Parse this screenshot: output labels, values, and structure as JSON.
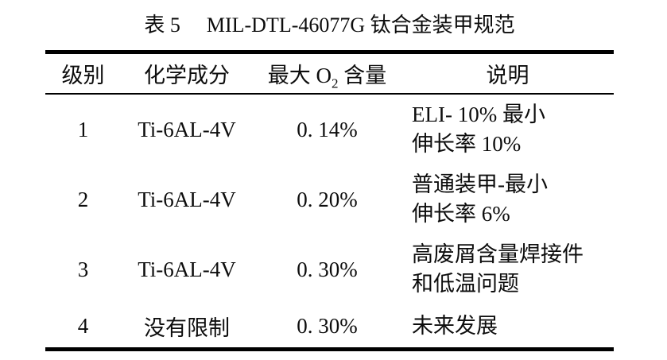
{
  "page": {
    "background_color": "#ffffff",
    "text_color": "#0d0d0d",
    "rule_color": "#000000"
  },
  "caption": {
    "label": "表 5",
    "text": "MIL-DTL-46077G 钛合金装甲规范"
  },
  "table": {
    "headers": {
      "grade": "级别",
      "composition": "化学成分",
      "max_o2_prefix": "最大 O",
      "max_o2_sub": "2",
      "max_o2_suffix": " 含量",
      "description": "说明"
    },
    "rows": [
      {
        "grade": "1",
        "composition": "Ti-6AL-4V",
        "max_o2": "0. 14%",
        "description": [
          "ELI- 10% 最小",
          "伸长率 10%"
        ]
      },
      {
        "grade": "2",
        "composition": "Ti-6AL-4V",
        "max_o2": "0. 20%",
        "description": [
          "普通装甲-最小",
          "伸长率 6%"
        ]
      },
      {
        "grade": "3",
        "composition": "Ti-6AL-4V",
        "max_o2": "0. 30%",
        "description": [
          "高废屑含量焊接件",
          "和低温问题"
        ]
      },
      {
        "grade": "4",
        "composition": "没有限制",
        "max_o2": "0. 30%",
        "description": [
          "未来发展"
        ]
      }
    ]
  }
}
